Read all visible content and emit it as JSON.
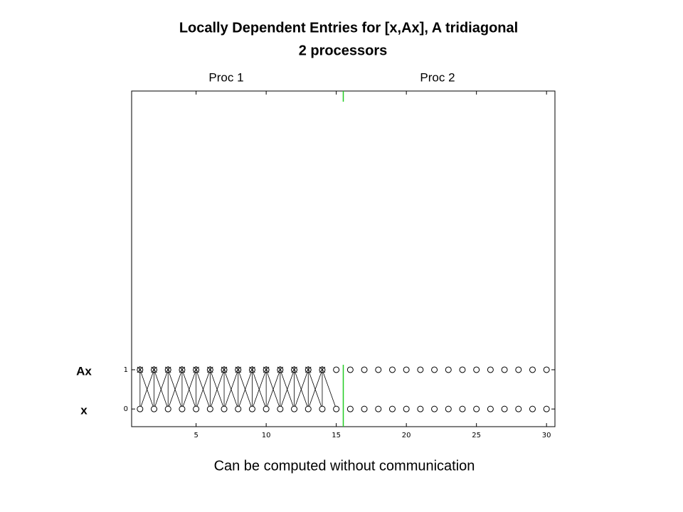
{
  "title": "Locally Dependent Entries for [x,Ax], A tridiagonal",
  "subtitle": "2 processors",
  "proc_labels": [
    "Proc 1",
    "Proc 2"
  ],
  "caption": "Can be computed without communication",
  "chart_data": {
    "type": "scatter",
    "x": [
      1,
      2,
      3,
      4,
      5,
      6,
      7,
      8,
      9,
      10,
      11,
      12,
      13,
      14,
      15,
      16,
      17,
      18,
      19,
      20,
      21,
      22,
      23,
      24,
      25,
      26,
      27,
      28,
      29,
      30
    ],
    "rows": [
      {
        "name": "Ax",
        "value": 1
      },
      {
        "name": "x",
        "value": 0
      }
    ],
    "local_count": 14,
    "divider": 15.5,
    "divider_color": "#22cc22",
    "xlim": [
      0.4,
      30.6
    ],
    "xticks": [
      5,
      10,
      15,
      20,
      25,
      30
    ],
    "ylim": [
      -0.45,
      8.1
    ],
    "yticks": [
      0,
      1
    ]
  }
}
